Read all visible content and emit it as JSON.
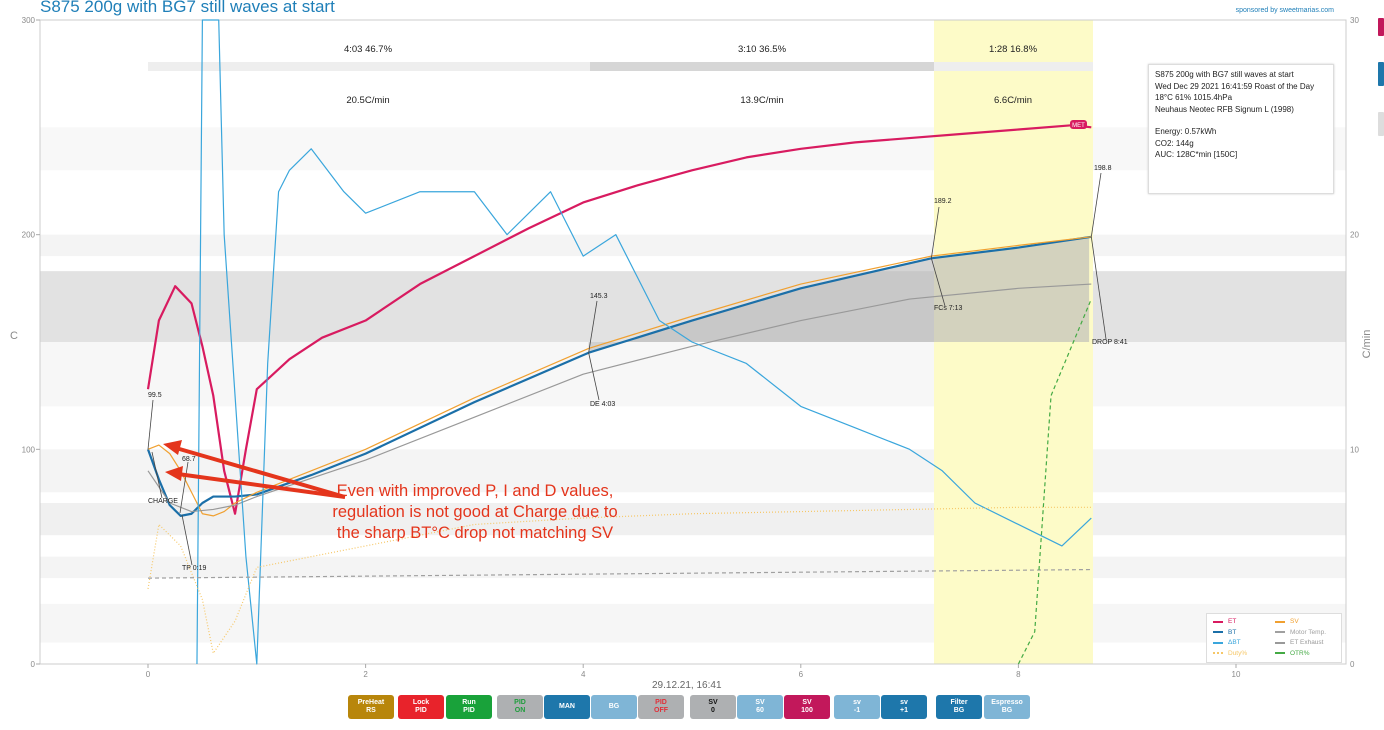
{
  "window": {
    "title": "S875 200g with BG7 still waves at start",
    "sponsor": "sponsored by sweetmarias.com"
  },
  "axes": {
    "y_left_label": "C",
    "y_right_label": "C/min",
    "y_left_ticks": [
      "0",
      "100",
      "200",
      "300"
    ],
    "y_right_ticks": [
      "0",
      "10",
      "20",
      "30"
    ],
    "x_ticks": [
      "0",
      "2",
      "4",
      "6",
      "8",
      "10"
    ],
    "x_label": "29.12.21, 16:41"
  },
  "phases": [
    {
      "time_pct": "4:03  46.7%",
      "ror": "20.5C/min"
    },
    {
      "time_pct": "3:10  36.5%",
      "ror": "13.9C/min"
    },
    {
      "time_pct": "1:28  16.8%",
      "ror": "6.6C/min"
    }
  ],
  "events": {
    "charge_et": "99.5",
    "charge_label": "CHARGE",
    "tp_value": "68.7",
    "tp_label": "TP 0:19",
    "de_value": "145.3",
    "de_label": "DE 4:03",
    "fcs_value": "189.2",
    "fcs_label": "FCs 7:13",
    "drop_value": "198.8",
    "drop_label": "DROP 8:41",
    "met_label": "MET"
  },
  "info": {
    "line1": "S875 200g with BG7 still waves at start",
    "line2": "Wed Dec 29 2021 16:41:59 Roast of the Day",
    "line3": "18°C  61%  1015.4hPa",
    "line4": "Neuhaus Neotec RFB Signum L (1998)",
    "line5": "Energy: 0.57kWh",
    "line6": "CO2: 144g",
    "line7": "AUC: 128C*min [150C]"
  },
  "legend": [
    {
      "label": "ET",
      "color": "#d81b60",
      "style": "solid"
    },
    {
      "label": "BT",
      "color": "#1b6fa8",
      "style": "solid"
    },
    {
      "label": "ΔBT",
      "color": "#3aa6dc",
      "style": "solid"
    },
    {
      "label": "Duty%",
      "color": "#f6c767",
      "style": "dotted"
    },
    {
      "label": "SV",
      "color": "#f0a030",
      "style": "solid"
    },
    {
      "label": "Motor Temp.",
      "color": "#a0a0a0",
      "style": "dashed"
    },
    {
      "label": "ET Exhaust",
      "color": "#999999",
      "style": "solid"
    },
    {
      "label": "OTR%",
      "color": "#44aa44",
      "style": "dashed"
    }
  ],
  "annotation": "Even with improved P, I and D values, regulation is not good at Charge due to the sharp BT°C drop not matching SV",
  "buttons": [
    {
      "line1": "PreHeat",
      "line2": "RS",
      "color": "#b8860b"
    },
    {
      "line1": "Lock",
      "line2": "PID",
      "color": "#e8232b"
    },
    {
      "line1": "Run",
      "line2": "PID",
      "color": "#19a23a"
    },
    {
      "line1": "PID",
      "line2": "ON",
      "color": "#aeb0b2",
      "text": "#1f9d3c"
    },
    {
      "line1": "MAN",
      "line2": "",
      "color": "#1e77ab"
    },
    {
      "line1": "BG",
      "line2": "",
      "color": "#7fb5d6"
    },
    {
      "line1": "PID",
      "line2": "OFF",
      "color": "#aeb0b2",
      "text": "#e0303a"
    },
    {
      "line1": "SV",
      "line2": "0",
      "color": "#aeb0b2",
      "text": "#111111"
    },
    {
      "line1": "SV",
      "line2": "60",
      "color": "#7fb5d6"
    },
    {
      "line1": "SV",
      "line2": "100",
      "color": "#c2185b"
    },
    {
      "line1": "sv",
      "line2": "-1",
      "color": "#7fb5d6"
    },
    {
      "line1": "sv",
      "line2": "+1",
      "color": "#1e77ab"
    },
    {
      "line1": "Filter",
      "line2": "BG",
      "color": "#1e77ab"
    },
    {
      "line1": "Espresso",
      "line2": "BG",
      "color": "#7fb5d6"
    }
  ],
  "chart_data": {
    "type": "line",
    "title": "S875 200g with BG7 still waves at start",
    "xlabel": "29.12.21, 16:41",
    "ylabel": "C",
    "y2label": "C/min",
    "xlim": [
      -1,
      11
    ],
    "ylim": [
      0,
      300
    ],
    "y2lim": [
      0,
      30
    ],
    "series": [
      {
        "name": "ET",
        "color": "#d81b60",
        "x": [
          0,
          0.1,
          0.25,
          0.4,
          0.5,
          0.6,
          0.7,
          0.8,
          0.9,
          1.0,
          1.3,
          1.6,
          2.0,
          2.5,
          3.0,
          3.5,
          4.0,
          4.5,
          5.0,
          5.5,
          6.0,
          6.5,
          7.0,
          7.5,
          8.0,
          8.5,
          8.67
        ],
        "y": [
          128,
          160,
          176,
          168,
          148,
          125,
          90,
          70,
          100,
          128,
          142,
          152,
          160,
          177,
          190,
          203,
          215,
          223,
          230,
          236,
          240,
          243,
          245,
          247,
          249,
          251,
          250
        ]
      },
      {
        "name": "BT",
        "color": "#1b6fa8",
        "x": [
          0,
          0.1,
          0.2,
          0.3,
          0.4,
          0.5,
          0.6,
          0.7,
          0.8,
          1.0,
          1.5,
          2.0,
          3.0,
          4.05,
          5.0,
          6.0,
          7.2,
          8.0,
          8.67
        ],
        "y": [
          100,
          86,
          74,
          69,
          70,
          75,
          78,
          78,
          78,
          79,
          88,
          98,
          122,
          145,
          160,
          175,
          189,
          194,
          199
        ]
      },
      {
        "name": "SV",
        "color": "#f0a030",
        "x": [
          0,
          0.1,
          0.2,
          0.3,
          0.4,
          0.5,
          0.6,
          0.7,
          0.8,
          1.0,
          2.0,
          3.0,
          4.05,
          5.0,
          6.0,
          7.2,
          8.0,
          8.67
        ],
        "y": [
          100,
          102,
          98,
          90,
          80,
          70,
          69,
          71,
          75,
          80,
          100,
          124,
          147,
          162,
          177,
          190,
          195,
          199
        ]
      },
      {
        "name": "ET Exhaust",
        "color": "#999999",
        "x": [
          0,
          0.2,
          0.4,
          0.6,
          0.8,
          1.0,
          2.0,
          3.0,
          4.0,
          5.0,
          6.0,
          7.0,
          8.0,
          8.67
        ],
        "y": [
          90,
          75,
          71,
          72,
          74,
          78,
          95,
          115,
          135,
          148,
          160,
          170,
          175,
          177
        ]
      },
      {
        "name": "ΔBT",
        "color": "#3aa6dc",
        "x": [
          0.45,
          0.5,
          0.55,
          0.65,
          0.7,
          0.9,
          1.0,
          1.1,
          1.2,
          1.3,
          1.5,
          1.8,
          2.0,
          2.5,
          3.0,
          3.3,
          3.7,
          4.0,
          4.3,
          4.7,
          5.0,
          5.5,
          6.0,
          6.5,
          7.0,
          7.3,
          7.6,
          8.0,
          8.4,
          8.67
        ],
        "y": [
          0,
          30,
          30,
          30,
          20,
          5,
          0,
          14,
          22,
          23,
          24,
          22,
          21,
          22,
          22,
          20,
          22,
          19,
          20,
          16,
          15,
          14,
          12,
          11,
          10,
          9,
          7.5,
          6.5,
          5.5,
          6.8
        ]
      },
      {
        "name": "Duty%",
        "color": "#f6c767",
        "x": [
          0,
          0.1,
          0.3,
          0.5,
          0.6,
          0.8,
          1.0,
          2.0,
          3.0,
          4.0,
          5.0,
          6.0,
          7.0,
          8.0,
          8.67
        ],
        "y": [
          3.5,
          6.5,
          5.5,
          3,
          0.5,
          2,
          4.5,
          5.5,
          6.5,
          6.8,
          7.0,
          7.1,
          7.2,
          7.3,
          7.3
        ]
      },
      {
        "name": "Motor Temp.",
        "color": "#a0a0a0",
        "x": [
          0,
          8.67
        ],
        "y": [
          4,
          4.4
        ]
      },
      {
        "name": "OTR%",
        "color": "#44aa44",
        "x": [
          8.0,
          8.15,
          8.3,
          8.67
        ],
        "y": [
          0,
          1.5,
          12.5,
          17
        ]
      }
    ]
  }
}
